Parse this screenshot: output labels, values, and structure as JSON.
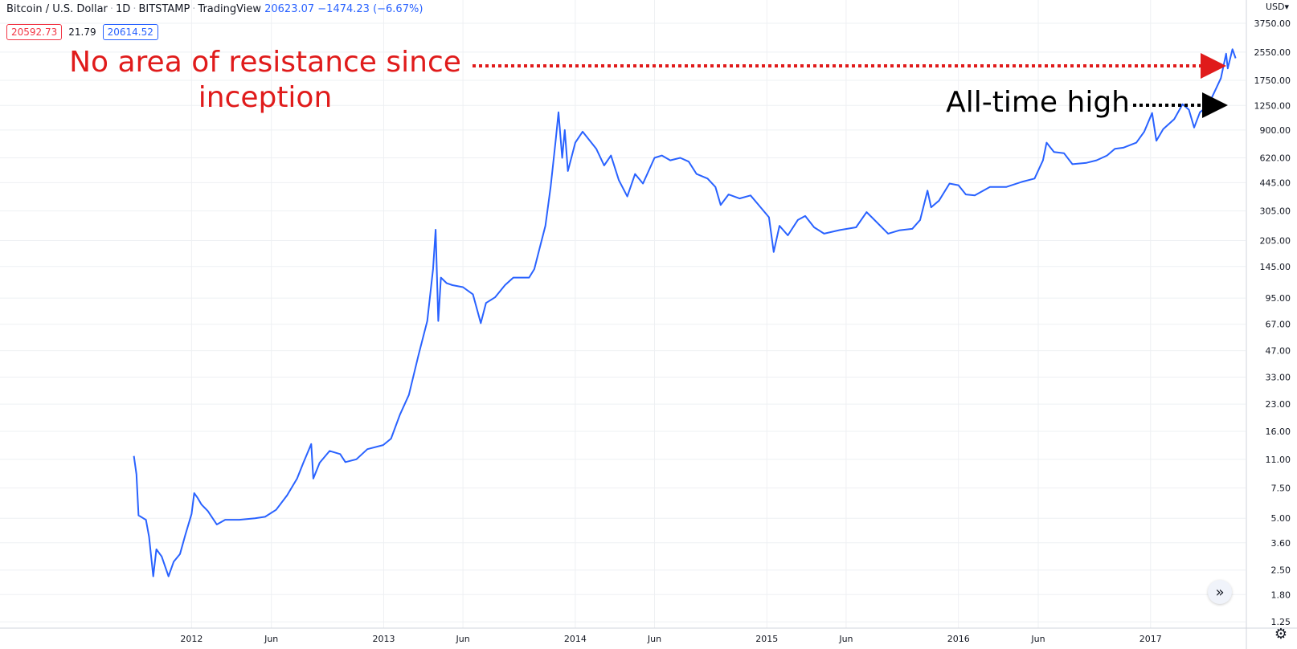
{
  "header": {
    "symbol": "Bitcoin / U.S. Dollar",
    "interval": "1D",
    "exchange": "BITSTAMP",
    "source": "TradingView",
    "price": "20623.07",
    "change": "−1474.23 (−6.67%)",
    "bid": "20592.73",
    "spread": "21.79",
    "ask": "20614.52",
    "currency": "USD"
  },
  "annotations": {
    "resistance": "No area of resistance since inception",
    "ath": "All-time high"
  },
  "colors": {
    "line": "#2962ff",
    "red": "#e01b1b",
    "grid": "#eef0f3"
  },
  "chart_data": {
    "type": "line",
    "title": "Bitcoin / U.S. Dollar",
    "log_scale": true,
    "grid": true,
    "y_ticks": [
      "1.25",
      "1.80",
      "2.50",
      "3.60",
      "5.00",
      "7.50",
      "11.00",
      "16.00",
      "23.00",
      "33.00",
      "47.00",
      "67.00",
      "95.00",
      "145.00",
      "205.00",
      "305.00",
      "445.00",
      "620.00",
      "900.00",
      "1250.00",
      "1750.00",
      "2550.00",
      "3750.00"
    ],
    "x_ticks": [
      "2012",
      "Jun",
      "2013",
      "Jun",
      "2014",
      "Jun",
      "2015",
      "Jun",
      "2016",
      "Jun",
      "2017"
    ],
    "ylim": [
      1.15,
      4600
    ],
    "xlim": [
      "2011-01-01",
      "2017-07-01"
    ],
    "series": [
      {
        "values": [
          [
            "2011-09-13",
            11.5
          ],
          [
            "2011-09-18",
            9.0
          ],
          [
            "2011-09-22",
            5.2
          ],
          [
            "2011-10-01",
            5.0
          ],
          [
            "2011-10-06",
            4.9
          ],
          [
            "2011-10-12",
            3.9
          ],
          [
            "2011-10-16",
            3.0
          ],
          [
            "2011-10-20",
            2.3
          ],
          [
            "2011-10-26",
            3.3
          ],
          [
            "2011-11-05",
            3.0
          ],
          [
            "2011-11-18",
            2.3
          ],
          [
            "2011-11-28",
            2.8
          ],
          [
            "2011-12-10",
            3.1
          ],
          [
            "2011-12-20",
            4.0
          ],
          [
            "2012-01-01",
            5.3
          ],
          [
            "2012-01-06",
            7.0
          ],
          [
            "2012-01-12",
            6.6
          ],
          [
            "2012-01-20",
            6.0
          ],
          [
            "2012-02-01",
            5.5
          ],
          [
            "2012-02-18",
            4.6
          ],
          [
            "2012-03-05",
            4.9
          ],
          [
            "2012-04-01",
            4.9
          ],
          [
            "2012-05-01",
            5.0
          ],
          [
            "2012-05-20",
            5.1
          ],
          [
            "2012-06-10",
            5.6
          ],
          [
            "2012-07-01",
            6.8
          ],
          [
            "2012-07-20",
            8.5
          ],
          [
            "2012-08-01",
            10.5
          ],
          [
            "2012-08-16",
            13.5
          ],
          [
            "2012-08-20",
            8.5
          ],
          [
            "2012-09-01",
            10.5
          ],
          [
            "2012-09-20",
            12.3
          ],
          [
            "2012-10-10",
            11.8
          ],
          [
            "2012-10-20",
            10.6
          ],
          [
            "2012-11-10",
            11.0
          ],
          [
            "2012-12-01",
            12.6
          ],
          [
            "2012-12-31",
            13.3
          ],
          [
            "2013-01-15",
            14.5
          ],
          [
            "2013-02-01",
            20.0
          ],
          [
            "2013-02-18",
            26.0
          ],
          [
            "2013-03-08",
            44.0
          ],
          [
            "2013-03-25",
            70.0
          ],
          [
            "2013-04-05",
            140.0
          ],
          [
            "2013-04-10",
            237.0
          ],
          [
            "2013-04-15",
            70.0
          ],
          [
            "2013-04-20",
            125.0
          ],
          [
            "2013-05-01",
            116.0
          ],
          [
            "2013-05-12",
            113.0
          ],
          [
            "2013-06-01",
            110.0
          ],
          [
            "2013-06-20",
            100.0
          ],
          [
            "2013-07-05",
            68.0
          ],
          [
            "2013-07-15",
            89.0
          ],
          [
            "2013-08-01",
            96.0
          ],
          [
            "2013-08-20",
            113.0
          ],
          [
            "2013-09-05",
            125.0
          ],
          [
            "2013-09-25",
            125.0
          ],
          [
            "2013-10-05",
            125.0
          ],
          [
            "2013-10-15",
            140.0
          ],
          [
            "2013-10-25",
            185.0
          ],
          [
            "2013-11-05",
            250.0
          ],
          [
            "2013-11-15",
            420.0
          ],
          [
            "2013-11-25",
            800.0
          ],
          [
            "2013-11-30",
            1140.0
          ],
          [
            "2013-12-07",
            620.0
          ],
          [
            "2013-12-12",
            900.0
          ],
          [
            "2013-12-18",
            520.0
          ],
          [
            "2014-01-01",
            760.0
          ],
          [
            "2014-01-15",
            880.0
          ],
          [
            "2014-02-10",
            700.0
          ],
          [
            "2014-02-25",
            560.0
          ],
          [
            "2014-03-10",
            640.0
          ],
          [
            "2014-03-25",
            460.0
          ],
          [
            "2014-04-10",
            370.0
          ],
          [
            "2014-04-25",
            500.0
          ],
          [
            "2014-05-10",
            440.0
          ],
          [
            "2014-06-01",
            620.0
          ],
          [
            "2014-06-15",
            640.0
          ],
          [
            "2014-07-01",
            600.0
          ],
          [
            "2014-07-20",
            620.0
          ],
          [
            "2014-08-05",
            590.0
          ],
          [
            "2014-08-20",
            500.0
          ],
          [
            "2014-09-10",
            470.0
          ],
          [
            "2014-09-25",
            420.0
          ],
          [
            "2014-10-05",
            330.0
          ],
          [
            "2014-10-20",
            380.0
          ],
          [
            "2014-11-10",
            360.0
          ],
          [
            "2014-12-01",
            375.0
          ],
          [
            "2014-12-20",
            320.0
          ],
          [
            "2015-01-05",
            280.0
          ],
          [
            "2015-01-14",
            176.0
          ],
          [
            "2015-01-25",
            250.0
          ],
          [
            "2015-02-10",
            220.0
          ],
          [
            "2015-03-01",
            270.0
          ],
          [
            "2015-03-15",
            285.0
          ],
          [
            "2015-04-01",
            245.0
          ],
          [
            "2015-04-20",
            225.0
          ],
          [
            "2015-05-20",
            236.0
          ],
          [
            "2015-06-20",
            245.0
          ],
          [
            "2015-07-10",
            300.0
          ],
          [
            "2015-07-20",
            280.0
          ],
          [
            "2015-08-20",
            225.0
          ],
          [
            "2015-09-10",
            235.0
          ],
          [
            "2015-10-05",
            240.0
          ],
          [
            "2015-10-20",
            270.0
          ],
          [
            "2015-11-03",
            400.0
          ],
          [
            "2015-11-10",
            320.0
          ],
          [
            "2015-11-25",
            350.0
          ],
          [
            "2015-12-15",
            440.0
          ],
          [
            "2016-01-01",
            430.0
          ],
          [
            "2016-01-15",
            380.0
          ],
          [
            "2016-02-01",
            375.0
          ],
          [
            "2016-03-01",
            420.0
          ],
          [
            "2016-04-01",
            420.0
          ],
          [
            "2016-05-01",
            450.0
          ],
          [
            "2016-05-25",
            470.0
          ],
          [
            "2016-06-10",
            600.0
          ],
          [
            "2016-06-17",
            760.0
          ],
          [
            "2016-07-01",
            670.0
          ],
          [
            "2016-07-20",
            660.0
          ],
          [
            "2016-08-05",
            570.0
          ],
          [
            "2016-09-01",
            580.0
          ],
          [
            "2016-09-20",
            600.0
          ],
          [
            "2016-10-10",
            640.0
          ],
          [
            "2016-10-25",
            700.0
          ],
          [
            "2016-11-10",
            710.0
          ],
          [
            "2016-12-05",
            760.0
          ],
          [
            "2016-12-20",
            880.0
          ],
          [
            "2017-01-04",
            1130.0
          ],
          [
            "2017-01-12",
            780.0
          ],
          [
            "2017-01-25",
            910.0
          ],
          [
            "2017-02-15",
            1040.0
          ],
          [
            "2017-03-03",
            1270.0
          ],
          [
            "2017-03-15",
            1180.0
          ],
          [
            "2017-03-25",
            930.0
          ],
          [
            "2017-04-05",
            1140.0
          ],
          [
            "2017-04-20",
            1240.0
          ],
          [
            "2017-05-05",
            1550.0
          ],
          [
            "2017-05-15",
            1800.0
          ],
          [
            "2017-05-25",
            2500.0
          ],
          [
            "2017-05-28",
            2050.0
          ],
          [
            "2017-06-06",
            2650.0
          ],
          [
            "2017-06-12",
            2350.0
          ]
        ]
      }
    ]
  }
}
